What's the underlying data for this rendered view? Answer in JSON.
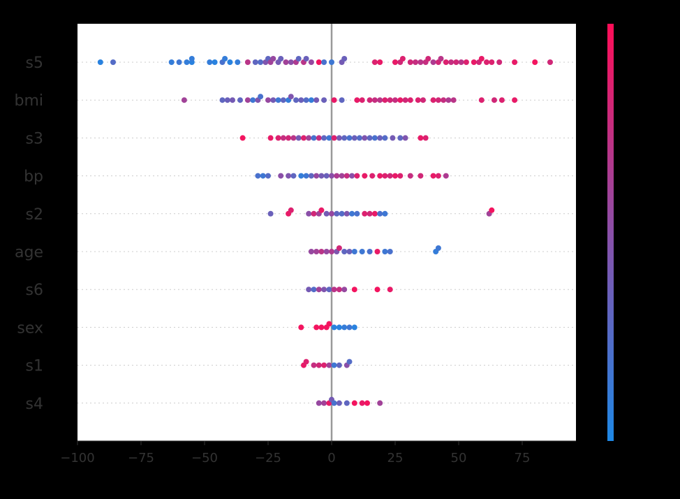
{
  "chart_data": {
    "type": "scatter",
    "subtype": "shap_beeswarm_summary",
    "title": "",
    "xlabel": "",
    "ylabel": "",
    "xlim": [
      -100,
      95
    ],
    "x_ticks": [
      -100,
      -75,
      -50,
      -25,
      0,
      25,
      50,
      75
    ],
    "x_tick_labels": [
      "−100",
      "−75",
      "−50",
      "−25",
      "0",
      "25",
      "50",
      "75"
    ],
    "grid": "horizontal dotted per feature row",
    "zero_line": true,
    "colorbar": {
      "position": "right",
      "low_color": "#1E88E5",
      "high_color": "#FF0D57",
      "labels": []
    },
    "features": [
      "s5",
      "bmi",
      "s3",
      "bp",
      "s2",
      "age",
      "s6",
      "sex",
      "s1",
      "s4"
    ],
    "series": [
      {
        "name": "s5",
        "points": [
          [
            -91,
            0.05
          ],
          [
            -86,
            0.25
          ],
          [
            -63,
            0.1
          ],
          [
            -60,
            0.15
          ],
          [
            -57,
            0.1
          ],
          [
            -55,
            0.05
          ],
          [
            -55,
            0.1
          ],
          [
            -48,
            0.1
          ],
          [
            -46,
            0.05
          ],
          [
            -43,
            0.2
          ],
          [
            -42,
            0.1
          ],
          [
            -40,
            0.05
          ],
          [
            -37,
            0.1
          ],
          [
            -33,
            0.7
          ],
          [
            -30,
            0.3
          ],
          [
            -28,
            0.25
          ],
          [
            -26,
            0.45
          ],
          [
            -25,
            0.3
          ],
          [
            -24,
            0.6
          ],
          [
            -23,
            0.55
          ],
          [
            -21,
            0.4
          ],
          [
            -20,
            0.35
          ],
          [
            -18,
            0.6
          ],
          [
            -16,
            0.5
          ],
          [
            -14,
            0.65
          ],
          [
            -13,
            0.3
          ],
          [
            -11,
            0.7
          ],
          [
            -10,
            0.35
          ],
          [
            -8,
            0.55
          ],
          [
            -5,
            0.95
          ],
          [
            -3,
            0.2
          ],
          [
            0,
            0.15
          ],
          [
            4,
            0.4
          ],
          [
            5,
            0.35
          ],
          [
            17,
            0.85
          ],
          [
            19,
            0.9
          ],
          [
            25,
            0.9
          ],
          [
            27,
            0.8
          ],
          [
            28,
            0.85
          ],
          [
            31,
            0.8
          ],
          [
            33,
            0.75
          ],
          [
            35,
            0.7
          ],
          [
            37,
            0.75
          ],
          [
            38,
            0.8
          ],
          [
            40,
            0.65
          ],
          [
            42,
            0.8
          ],
          [
            43,
            0.7
          ],
          [
            45,
            0.85
          ],
          [
            47,
            0.75
          ],
          [
            49,
            0.8
          ],
          [
            51,
            0.7
          ],
          [
            53,
            0.85
          ],
          [
            56,
            0.9
          ],
          [
            58,
            0.8
          ],
          [
            59,
            0.9
          ],
          [
            61,
            0.85
          ],
          [
            63,
            0.85
          ],
          [
            66,
            0.8
          ],
          [
            72,
            0.9
          ],
          [
            80,
            0.95
          ],
          [
            86,
            0.8
          ]
        ]
      },
      {
        "name": "bmi",
        "points": [
          [
            -58,
            0.6
          ],
          [
            -43,
            0.3
          ],
          [
            -41,
            0.35
          ],
          [
            -39,
            0.4
          ],
          [
            -36,
            0.3
          ],
          [
            -33,
            0.6
          ],
          [
            -31,
            0.15
          ],
          [
            -29,
            0.45
          ],
          [
            -28,
            0.2
          ],
          [
            -25,
            0.55
          ],
          [
            -23,
            0.4
          ],
          [
            -21,
            0.15
          ],
          [
            -19,
            0.3
          ],
          [
            -17,
            0.1
          ],
          [
            -16,
            0.45
          ],
          [
            -14,
            0.3
          ],
          [
            -12,
            0.35
          ],
          [
            -10,
            0.25
          ],
          [
            -8,
            0.1
          ],
          [
            -6,
            0.4
          ],
          [
            -3,
            0.35
          ],
          [
            1,
            0.9
          ],
          [
            4,
            0.3
          ],
          [
            10,
            0.9
          ],
          [
            12,
            0.85
          ],
          [
            15,
            0.8
          ],
          [
            17,
            0.75
          ],
          [
            19,
            0.7
          ],
          [
            21,
            0.85
          ],
          [
            23,
            0.8
          ],
          [
            25,
            0.75
          ],
          [
            27,
            0.9
          ],
          [
            29,
            0.8
          ],
          [
            31,
            0.85
          ],
          [
            34,
            0.85
          ],
          [
            36,
            0.8
          ],
          [
            40,
            0.85
          ],
          [
            42,
            0.8
          ],
          [
            44,
            0.75
          ],
          [
            46,
            0.65
          ],
          [
            48,
            0.7
          ],
          [
            59,
            0.85
          ],
          [
            64,
            0.8
          ],
          [
            67,
            0.85
          ],
          [
            72,
            0.9
          ]
        ]
      },
      {
        "name": "s3",
        "points": [
          [
            -35,
            0.95
          ],
          [
            -24,
            0.9
          ],
          [
            -21,
            0.85
          ],
          [
            -19,
            0.75
          ],
          [
            -17,
            0.8
          ],
          [
            -15,
            0.7
          ],
          [
            -13,
            0.4
          ],
          [
            -11,
            0.85
          ],
          [
            -9,
            0.6
          ],
          [
            -7,
            0.2
          ],
          [
            -5,
            0.75
          ],
          [
            -3,
            0.3
          ],
          [
            -1,
            0.15
          ],
          [
            1,
            0.85
          ],
          [
            3,
            0.4
          ],
          [
            5,
            0.3
          ],
          [
            7,
            0.2
          ],
          [
            9,
            0.35
          ],
          [
            11,
            0.25
          ],
          [
            13,
            0.45
          ],
          [
            15,
            0.3
          ],
          [
            17,
            0.2
          ],
          [
            19,
            0.35
          ],
          [
            21,
            0.25
          ],
          [
            24,
            0.4
          ],
          [
            27,
            0.3
          ],
          [
            29,
            0.45
          ],
          [
            35,
            0.9
          ],
          [
            37,
            0.85
          ]
        ]
      },
      {
        "name": "bp",
        "points": [
          [
            -29,
            0.2
          ],
          [
            -27,
            0.15
          ],
          [
            -25,
            0.25
          ],
          [
            -20,
            0.5
          ],
          [
            -17,
            0.45
          ],
          [
            -15,
            0.3
          ],
          [
            -12,
            0.1
          ],
          [
            -10,
            0.15
          ],
          [
            -8,
            0.3
          ],
          [
            -6,
            0.55
          ],
          [
            -4,
            0.4
          ],
          [
            -2,
            0.35
          ],
          [
            0,
            0.5
          ],
          [
            2,
            0.65
          ],
          [
            4,
            0.6
          ],
          [
            6,
            0.75
          ],
          [
            8,
            0.5
          ],
          [
            10,
            0.85
          ],
          [
            13,
            0.9
          ],
          [
            16,
            0.85
          ],
          [
            19,
            0.9
          ],
          [
            21,
            0.85
          ],
          [
            23,
            0.8
          ],
          [
            25,
            0.9
          ],
          [
            27,
            0.85
          ],
          [
            31,
            0.75
          ],
          [
            35,
            0.8
          ],
          [
            40,
            0.9
          ],
          [
            42,
            0.85
          ],
          [
            45,
            0.65
          ]
        ]
      },
      {
        "name": "s2",
        "points": [
          [
            -24,
            0.35
          ],
          [
            -17,
            0.9
          ],
          [
            -16,
            0.85
          ],
          [
            -9,
            0.5
          ],
          [
            -7,
            0.8
          ],
          [
            -5,
            0.6
          ],
          [
            -4,
            0.9
          ],
          [
            -2,
            0.4
          ],
          [
            0,
            0.55
          ],
          [
            2,
            0.3
          ],
          [
            4,
            0.25
          ],
          [
            6,
            0.45
          ],
          [
            8,
            0.15
          ],
          [
            10,
            0.2
          ],
          [
            13,
            0.85
          ],
          [
            15,
            0.8
          ],
          [
            17,
            0.9
          ],
          [
            19,
            0.2
          ],
          [
            21,
            0.15
          ],
          [
            62,
            0.6
          ],
          [
            63,
            0.95
          ]
        ]
      },
      {
        "name": "age",
        "points": [
          [
            -8,
            0.55
          ],
          [
            -6,
            0.6
          ],
          [
            -4,
            0.7
          ],
          [
            -2,
            0.55
          ],
          [
            0,
            0.65
          ],
          [
            2,
            0.45
          ],
          [
            3,
            0.8
          ],
          [
            5,
            0.3
          ],
          [
            7,
            0.35
          ],
          [
            9,
            0.15
          ],
          [
            12,
            0.15
          ],
          [
            15,
            0.2
          ],
          [
            18,
            0.9
          ],
          [
            21,
            0.15
          ],
          [
            23,
            0.2
          ],
          [
            41,
            0.1
          ],
          [
            42,
            0.15
          ]
        ]
      },
      {
        "name": "s6",
        "points": [
          [
            -9,
            0.4
          ],
          [
            -7,
            0.25
          ],
          [
            -5,
            0.6
          ],
          [
            -3,
            0.45
          ],
          [
            -1,
            0.3
          ],
          [
            1,
            0.7
          ],
          [
            3,
            0.75
          ],
          [
            5,
            0.55
          ],
          [
            9,
            0.95
          ],
          [
            18,
            0.95
          ],
          [
            23,
            0.9
          ]
        ]
      },
      {
        "name": "sex",
        "points": [
          [
            -12,
            0.95
          ],
          [
            -6,
            0.95
          ],
          [
            -4,
            0.95
          ],
          [
            -2,
            0.95
          ],
          [
            -1,
            0.95
          ],
          [
            1,
            0.05
          ],
          [
            3,
            0.05
          ],
          [
            5,
            0.1
          ],
          [
            7,
            0.15
          ],
          [
            9,
            0.05
          ]
        ]
      },
      {
        "name": "s1",
        "points": [
          [
            -11,
            0.9
          ],
          [
            -10,
            0.85
          ],
          [
            -7,
            0.75
          ],
          [
            -5,
            0.8
          ],
          [
            -3,
            0.85
          ],
          [
            -1,
            0.6
          ],
          [
            1,
            0.15
          ],
          [
            3,
            0.3
          ],
          [
            6,
            0.5
          ],
          [
            7,
            0.25
          ]
        ]
      },
      {
        "name": "s4",
        "points": [
          [
            -5,
            0.55
          ],
          [
            -3,
            0.6
          ],
          [
            -1,
            0.9
          ],
          [
            0,
            0.4
          ],
          [
            1,
            0.2
          ],
          [
            3,
            0.35
          ],
          [
            6,
            0.3
          ],
          [
            9,
            0.95
          ],
          [
            12,
            0.9
          ],
          [
            14,
            0.95
          ],
          [
            19,
            0.6
          ]
        ]
      }
    ]
  }
}
